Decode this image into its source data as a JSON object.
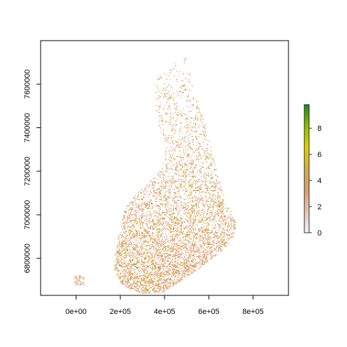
{
  "chart_data": {
    "type": "heatmap",
    "title": "",
    "xlabel": "",
    "ylabel": "",
    "xlim": [
      -160000,
      960000
    ],
    "ylim": [
      6630000,
      7800000
    ],
    "x_ticks": [
      {
        "value": 0,
        "label": "0e+00"
      },
      {
        "value": 200000,
        "label": "2e+05"
      },
      {
        "value": 400000,
        "label": "4e+05"
      },
      {
        "value": 600000,
        "label": "6e+05"
      },
      {
        "value": 800000,
        "label": "8e+05"
      }
    ],
    "y_ticks": [
      {
        "value": 6800000,
        "label": "6800000"
      },
      {
        "value": 7000000,
        "label": "7000000"
      },
      {
        "value": 7200000,
        "label": "7200000"
      },
      {
        "value": 7400000,
        "label": "7400000"
      },
      {
        "value": 7600000,
        "label": "7600000"
      }
    ],
    "legend": {
      "placement": "right",
      "range": [
        0,
        9.8
      ],
      "ticks": [
        {
          "value": 0,
          "label": "0"
        },
        {
          "value": 2,
          "label": "2"
        },
        {
          "value": 4,
          "label": "4"
        },
        {
          "value": 6,
          "label": "6"
        },
        {
          "value": 8,
          "label": "8"
        }
      ],
      "color_stops": [
        "#f2f2f2",
        "#e8c4b2",
        "#d9a070",
        "#d2b04a",
        "#e0d000",
        "#8cc000",
        "#1f8a1f"
      ]
    },
    "grid": false,
    "data_extent_note_values": {
      "x_range": [
        100000,
        740000
      ],
      "y_range": [
        6650000,
        7760000
      ]
    }
  }
}
